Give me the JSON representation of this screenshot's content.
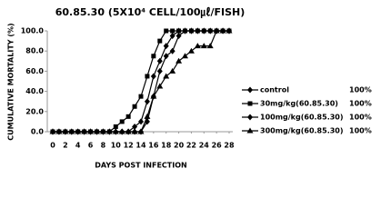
{
  "chart_data": {
    "type": "line",
    "title": "60.85.30 (5X10⁴ CELL/100㎕/FISH)",
    "x_label": "DAYS POST INFECTION",
    "y_label": "CUMULATIVE MORTALITY (%)",
    "x": [
      0,
      1,
      2,
      3,
      4,
      5,
      6,
      7,
      8,
      9,
      10,
      11,
      12,
      13,
      14,
      15,
      16,
      17,
      18,
      19,
      20,
      21,
      22,
      23,
      24,
      25,
      26,
      27,
      28
    ],
    "xlim": [
      0,
      28
    ],
    "xticks": [
      0,
      2,
      4,
      6,
      8,
      10,
      12,
      14,
      16,
      18,
      20,
      22,
      24,
      26,
      28
    ],
    "ylim": [
      0,
      100
    ],
    "yticks": [
      {
        "value": 0,
        "label": "0.0"
      },
      {
        "value": 20,
        "label": "20.0"
      },
      {
        "value": 40,
        "label": "40.0"
      },
      {
        "value": 60,
        "label": "60.0"
      },
      {
        "value": 80,
        "label": "80.0"
      },
      {
        "value": 100,
        "label": "100.0"
      }
    ],
    "color": "#000000",
    "series": [
      {
        "name": "control",
        "marker": "diamond",
        "summary": {
          "value": 100,
          "label": "100%"
        },
        "values": [
          0,
          0,
          0,
          0,
          0,
          0,
          0,
          0,
          0,
          0,
          0,
          0,
          0,
          5,
          10,
          30,
          55,
          70,
          85,
          95,
          100,
          100,
          100,
          100,
          100,
          100,
          100,
          100,
          100
        ]
      },
      {
        "name": "30mg/kg(60.85.30)",
        "marker": "square",
        "summary": {
          "value": 100,
          "label": "100%"
        },
        "values": [
          0,
          0,
          0,
          0,
          0,
          0,
          0,
          0,
          0,
          0,
          5,
          10,
          15,
          25,
          35,
          55,
          75,
          90,
          100,
          100,
          100,
          100,
          100,
          100,
          100,
          100,
          100,
          100,
          100
        ]
      },
      {
        "name": "100mg/kg(60.85.30)",
        "marker": "diamond",
        "summary": {
          "value": 100,
          "label": "100%"
        },
        "values": [
          0,
          0,
          0,
          0,
          0,
          0,
          0,
          0,
          0,
          0,
          0,
          0,
          0,
          0,
          0,
          10,
          35,
          60,
          75,
          80,
          95,
          100,
          100,
          100,
          100,
          100,
          100,
          100,
          100
        ]
      },
      {
        "name": "300mg/kg(60.85.30)",
        "marker": "triangle",
        "summary": {
          "value": 100,
          "label": "100%"
        },
        "values": [
          0,
          0,
          0,
          0,
          0,
          0,
          0,
          0,
          0,
          0,
          0,
          0,
          0,
          0,
          0,
          15,
          35,
          45,
          55,
          60,
          70,
          75,
          80,
          85,
          85,
          85,
          100,
          100,
          100
        ]
      }
    ]
  }
}
